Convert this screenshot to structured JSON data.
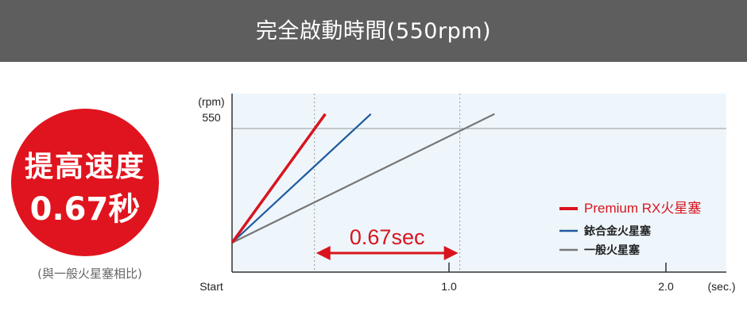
{
  "banner": {
    "title": "完全啟動時間(550rpm)"
  },
  "badge": {
    "line1": "提高速度",
    "line2": "0.67秒",
    "note": "(與一般火星塞相比)"
  },
  "colors": {
    "banner_bg": "#5e5e5e",
    "badge_bg": "#e0141e",
    "plot_bg": "#eef6fc",
    "red": "#d9141e",
    "blue": "#1f5a9e",
    "gray": "#777777",
    "grid": "#999999"
  },
  "chart_data": {
    "type": "line",
    "ylabel": "(rpm)",
    "xlabel": "(sec.)",
    "x_ticks": [
      {
        "value": 0,
        "label": "Start"
      },
      {
        "value": 1.0,
        "label": "1.0"
      },
      {
        "value": 2.0,
        "label": "2.0"
      }
    ],
    "y_ticks": [
      {
        "value": 550,
        "label": "550"
      }
    ],
    "xlim": [
      0,
      2.3
    ],
    "ylim": [
      0,
      620
    ],
    "reference_line_y": 550,
    "series": [
      {
        "name": "Premium RX火星塞",
        "color": "#d9141e",
        "points": [
          [
            0,
            0
          ],
          [
            0.43,
            620
          ]
        ]
      },
      {
        "name": "銥合金火星塞",
        "color": "#1f5a9e",
        "points": [
          [
            0,
            0
          ],
          [
            0.64,
            620
          ]
        ]
      },
      {
        "name": "一般火星塞",
        "color": "#777777",
        "points": [
          [
            0,
            0
          ],
          [
            1.21,
            620
          ]
        ]
      }
    ],
    "markers": [
      {
        "x": 0.38,
        "label": ""
      },
      {
        "x": 1.05,
        "label": ""
      }
    ],
    "annotation": {
      "from": 0.38,
      "to": 1.05,
      "label": "0.67sec"
    },
    "legend_position": "right"
  }
}
